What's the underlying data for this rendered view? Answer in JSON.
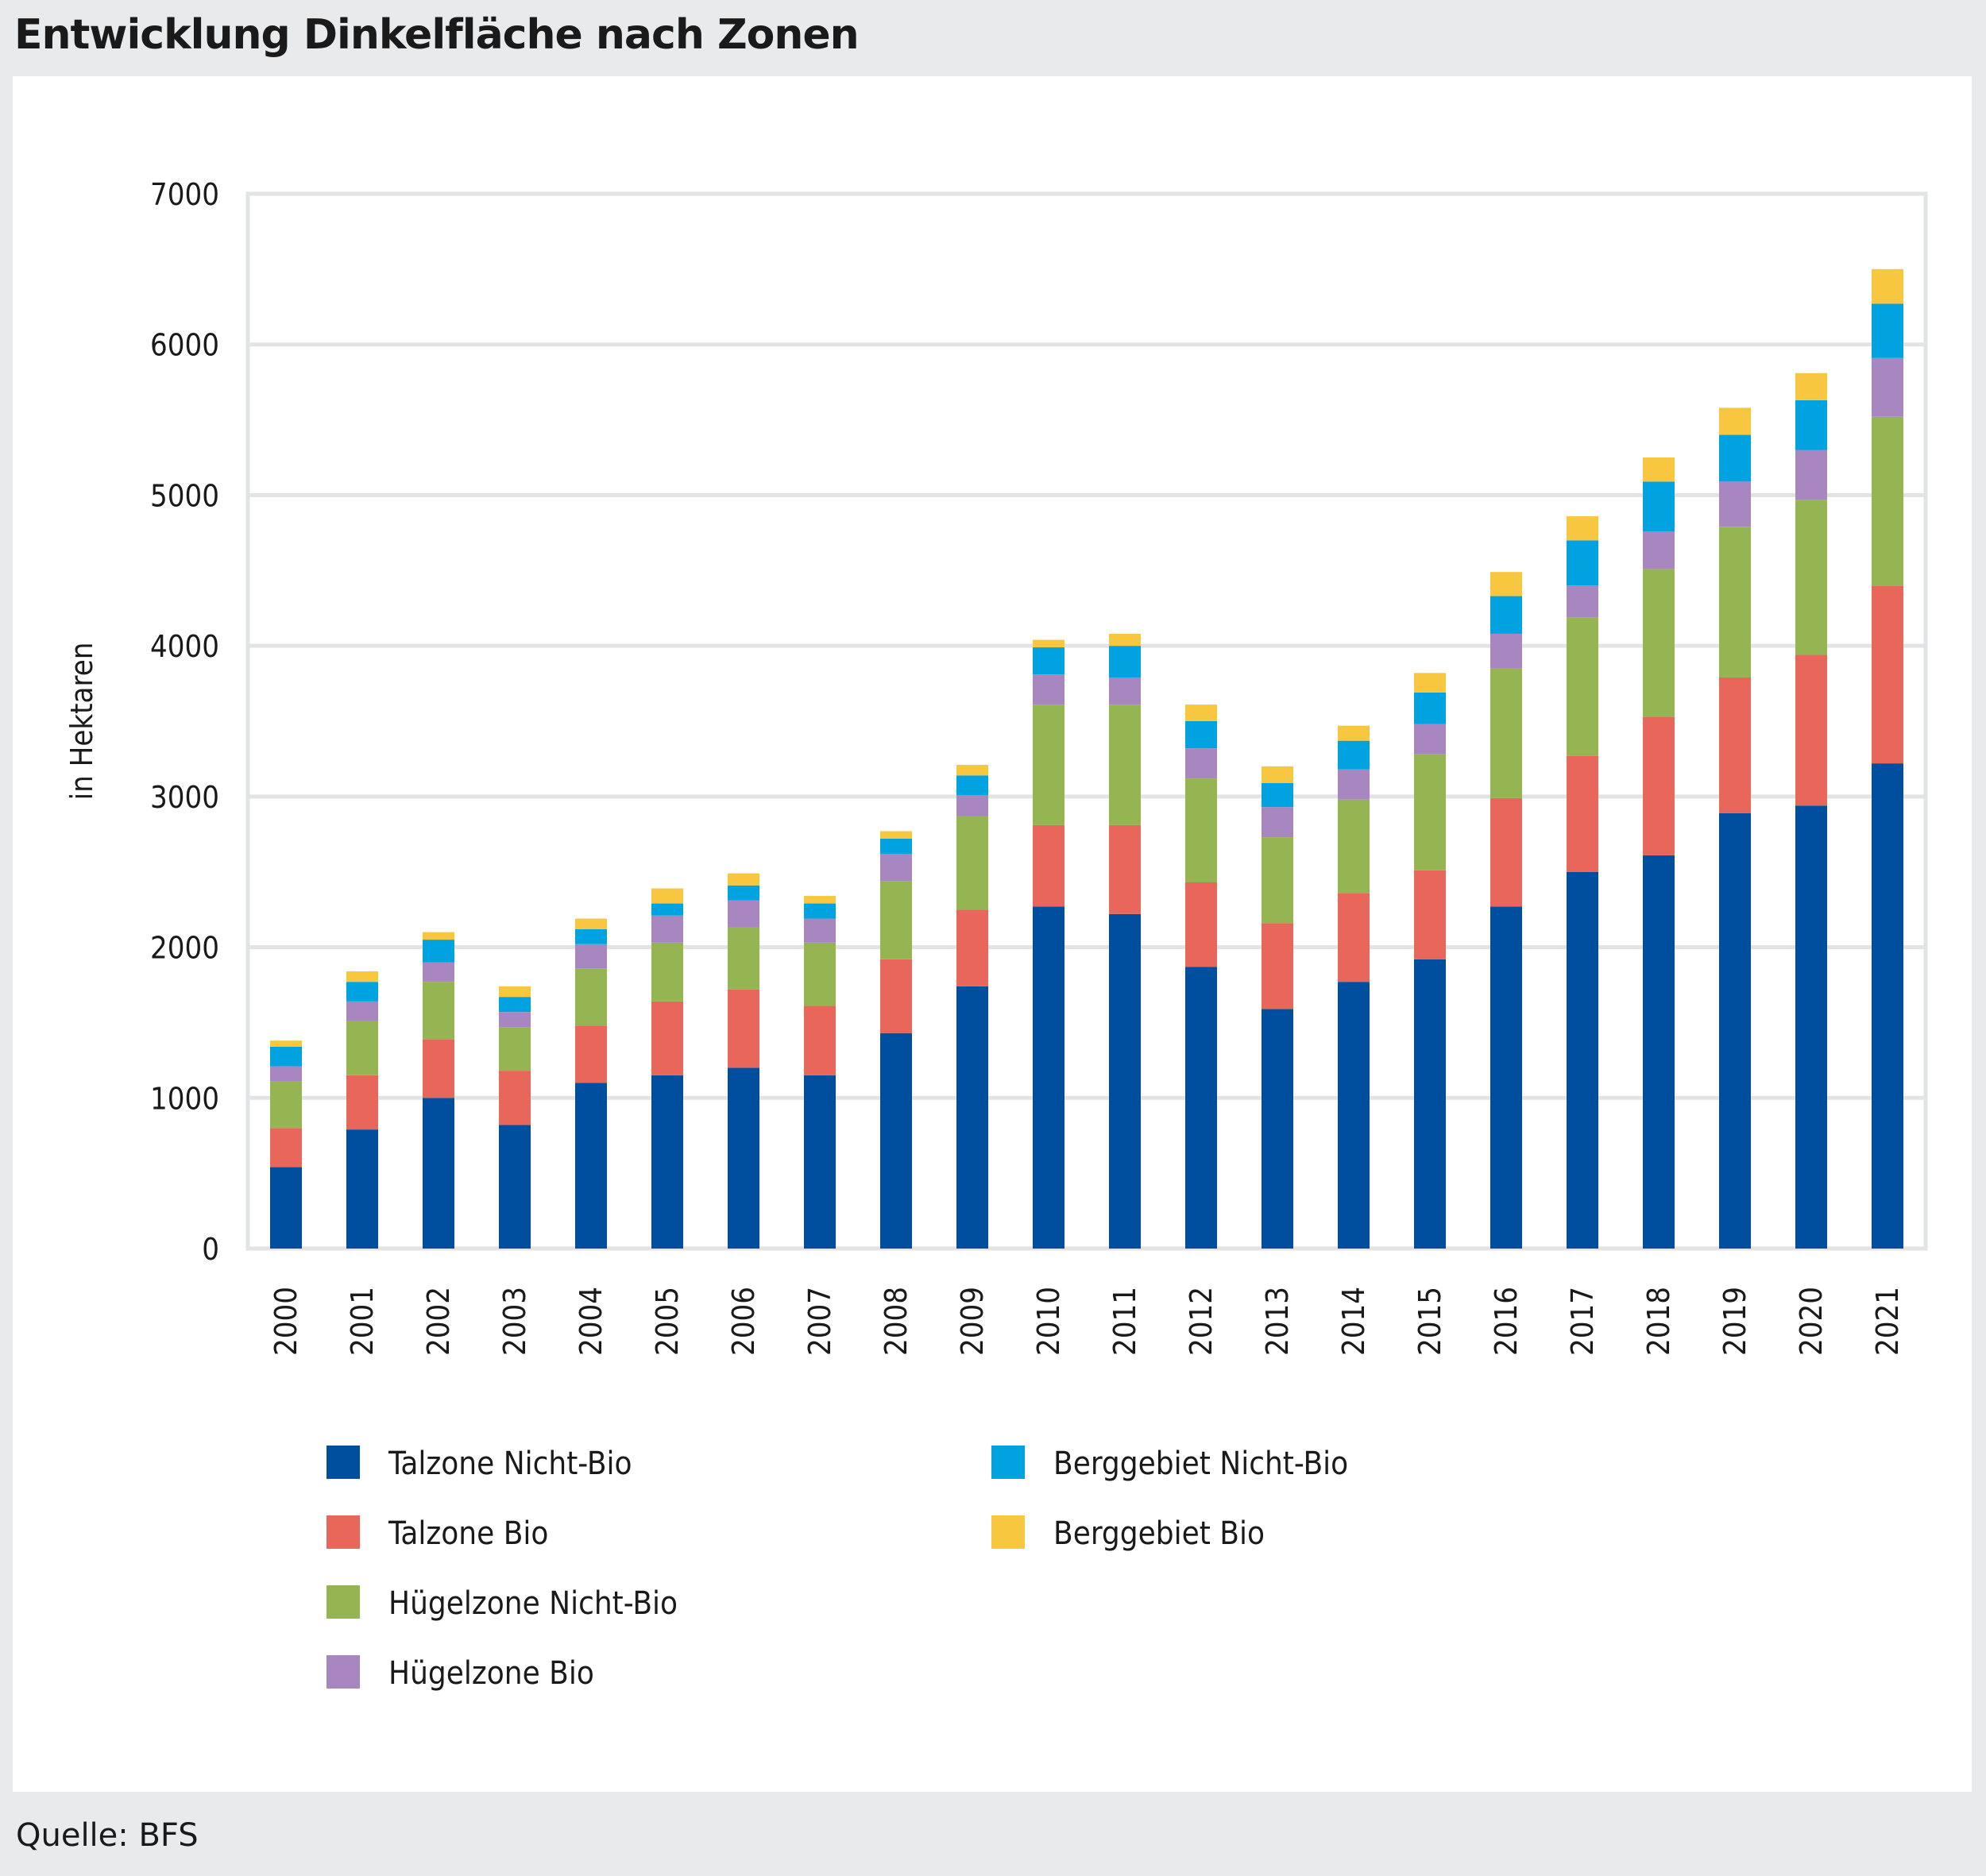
{
  "title": "Entwicklung Dinkelfläche nach Zonen",
  "source": "Quelle: BFS",
  "chart_data": {
    "type": "bar",
    "stacked": true,
    "title": "Entwicklung Dinkelfläche nach Zonen",
    "xlabel": "",
    "ylabel": "in Hektaren",
    "ylim": [
      0,
      7000
    ],
    "yticks": [
      0,
      1000,
      2000,
      3000,
      4000,
      5000,
      6000,
      7000
    ],
    "grid": true,
    "legend_position": "bottom",
    "categories": [
      "2000",
      "2001",
      "2002",
      "2003",
      "2004",
      "2005",
      "2006",
      "2007",
      "2008",
      "2009",
      "2010",
      "2011",
      "2012",
      "2013",
      "2014",
      "2015",
      "2016",
      "2017",
      "2018",
      "2019",
      "2020",
      "2021"
    ],
    "series": [
      {
        "name": "Talzone Nicht-Bio",
        "color": "#004f9f",
        "values": [
          540,
          790,
          1000,
          820,
          1100,
          1150,
          1200,
          1150,
          1430,
          1740,
          2270,
          2220,
          1870,
          1590,
          1770,
          1920,
          2270,
          2500,
          2610,
          2890,
          2940,
          3220
        ]
      },
      {
        "name": "Talzone Bio",
        "color": "#e8675a",
        "values": [
          260,
          360,
          390,
          360,
          380,
          490,
          520,
          460,
          490,
          510,
          540,
          590,
          560,
          570,
          590,
          590,
          720,
          770,
          920,
          900,
          1000,
          1180
        ]
      },
      {
        "name": "Hügelzone Nicht-Bio",
        "color": "#95b553",
        "values": [
          310,
          360,
          380,
          290,
          380,
          390,
          410,
          420,
          520,
          620,
          800,
          800,
          690,
          570,
          620,
          770,
          860,
          920,
          980,
          1000,
          1030,
          1120
        ]
      },
      {
        "name": "Hügelzone Bio",
        "color": "#a887c0",
        "values": [
          100,
          130,
          130,
          100,
          160,
          180,
          180,
          160,
          180,
          140,
          200,
          180,
          200,
          200,
          200,
          200,
          230,
          210,
          250,
          300,
          330,
          390
        ]
      },
      {
        "name": "Berggebiet Nicht-Bio",
        "color": "#00a3e0",
        "values": [
          130,
          130,
          150,
          100,
          100,
          80,
          100,
          100,
          100,
          130,
          180,
          210,
          180,
          160,
          190,
          210,
          250,
          300,
          330,
          310,
          330,
          360
        ]
      },
      {
        "name": "Berggebiet Bio",
        "color": "#f7c740",
        "values": [
          40,
          70,
          50,
          70,
          70,
          100,
          80,
          50,
          50,
          70,
          50,
          80,
          110,
          110,
          100,
          130,
          160,
          160,
          160,
          180,
          180,
          230
        ]
      }
    ]
  }
}
